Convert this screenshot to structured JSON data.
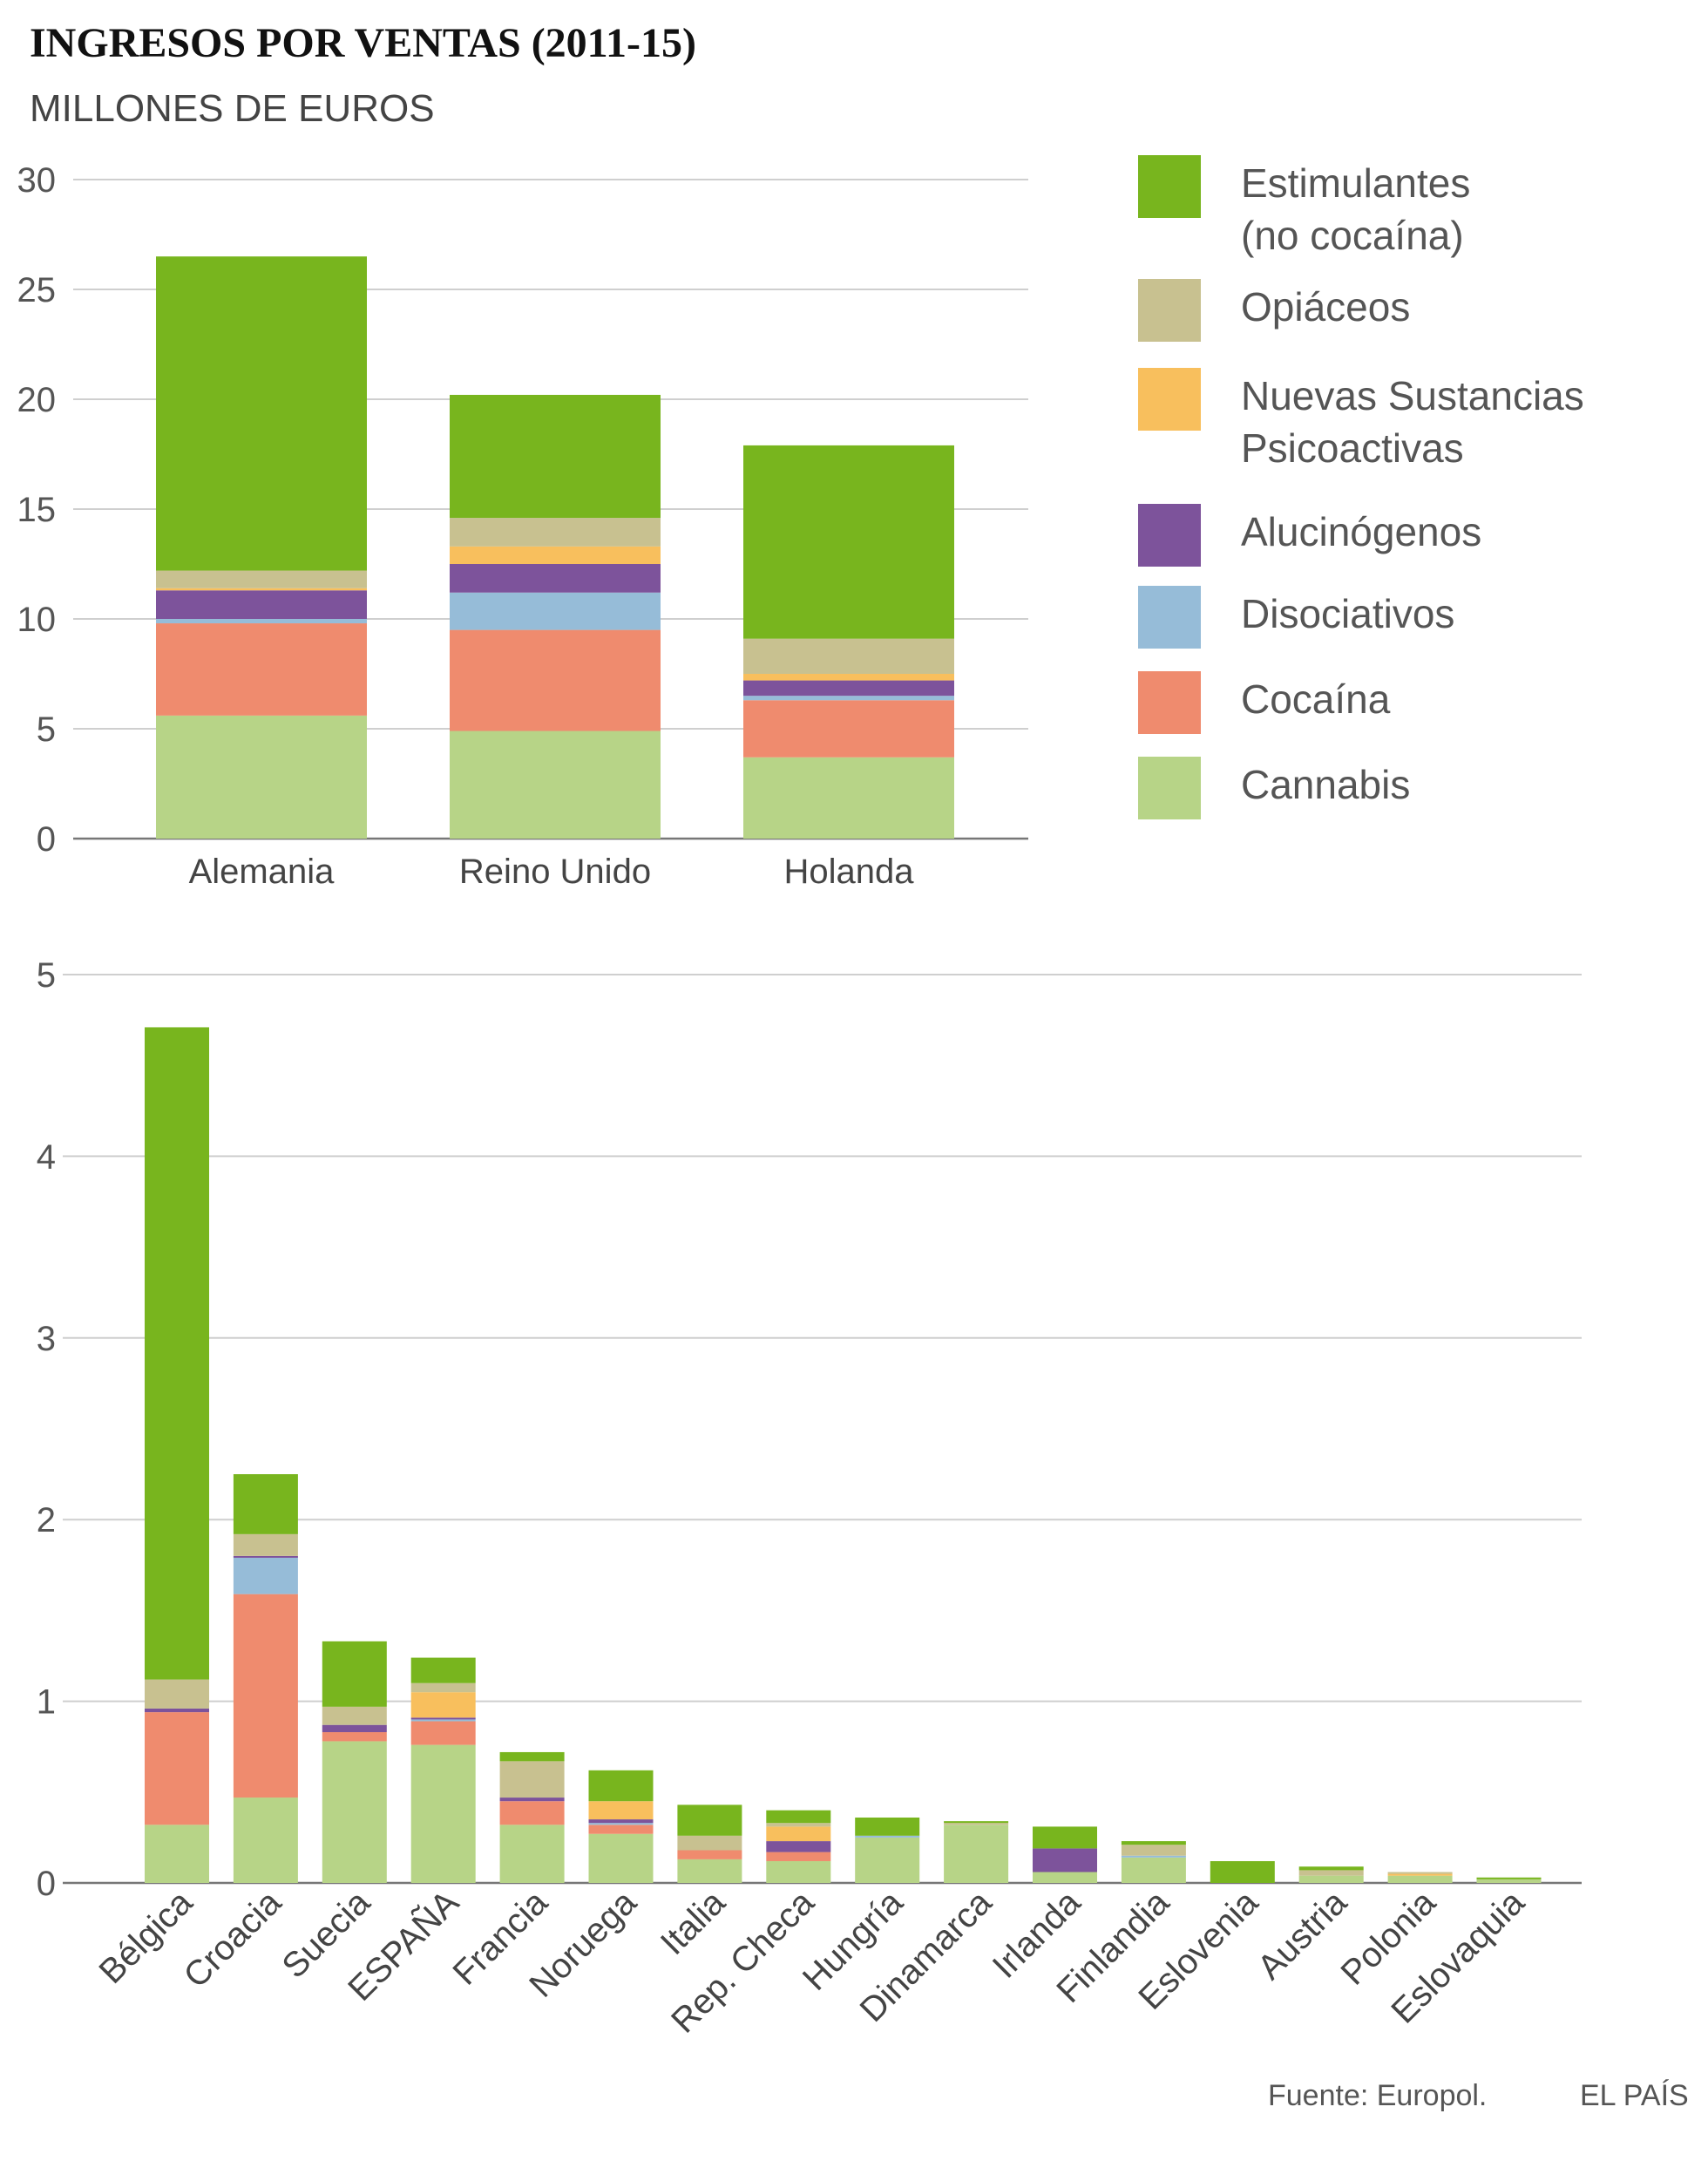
{
  "title": "INGRESOS POR VENTAS (2011-15)",
  "subtitle": "MILLONES DE EUROS",
  "source": "Fuente: Europol.",
  "brand": "EL PAÍS",
  "legend": [
    {
      "name": "Estimulantes (no cocaína)",
      "lines": [
        "Estimulantes",
        "(no cocaína)"
      ],
      "color": "#78b51e"
    },
    {
      "name": "Opiáceos",
      "lines": [
        "Opiáceos"
      ],
      "color": "#c8c190"
    },
    {
      "name": "Nuevas Sustancias Psicoactivas",
      "lines": [
        "Nuevas Sustancias",
        "Psicoactivas"
      ],
      "color": "#f8bf5d"
    },
    {
      "name": "Alucinógenos",
      "lines": [
        "Alucinógenos"
      ],
      "color": "#7d539b"
    },
    {
      "name": "Disociativos",
      "lines": [
        "Disociativos"
      ],
      "color": "#96bcd8"
    },
    {
      "name": "Cocaína",
      "lines": [
        "Cocaína"
      ],
      "color": "#ef8b6e"
    },
    {
      "name": "Cannabis",
      "lines": [
        "Cannabis"
      ],
      "color": "#b7d487"
    }
  ],
  "chart_data": [
    {
      "type": "bar",
      "stacked": true,
      "ylim": [
        0,
        30
      ],
      "yticks": [
        0,
        5,
        10,
        15,
        20,
        25,
        30
      ],
      "categories": [
        "Alemania",
        "Reino Unido",
        "Holanda"
      ],
      "series": [
        {
          "name": "Cannabis",
          "values": [
            5.6,
            4.9,
            3.7
          ]
        },
        {
          "name": "Cocaína",
          "values": [
            4.2,
            4.6,
            2.6
          ]
        },
        {
          "name": "Disociativos",
          "values": [
            0.2,
            1.7,
            0.2
          ]
        },
        {
          "name": "Alucinógenos",
          "values": [
            1.3,
            1.3,
            0.7
          ]
        },
        {
          "name": "Nuevas Sustancias Psicoactivas",
          "values": [
            0.1,
            0.8,
            0.3
          ]
        },
        {
          "name": "Opiáceos",
          "values": [
            0.8,
            1.3,
            1.6
          ]
        },
        {
          "name": "Estimulantes (no cocaína)",
          "values": [
            14.3,
            5.6,
            8.8
          ]
        }
      ]
    },
    {
      "type": "bar",
      "stacked": true,
      "ylim": [
        0,
        5
      ],
      "yticks": [
        0,
        1,
        2,
        3,
        4,
        5
      ],
      "categories": [
        "Bélgica",
        "Croacia",
        "Suecia",
        "ESPAÑA",
        "Francia",
        "Noruega",
        "Italia",
        "Rep. Checa",
        "Hungría",
        "Dinamarca",
        "Irlanda",
        "Finlandia",
        "Eslovenia",
        "Austria",
        "Polonia",
        "Eslovaquia"
      ],
      "series": [
        {
          "name": "Cannabis",
          "values": [
            0.32,
            0.47,
            0.78,
            0.76,
            0.32,
            0.27,
            0.13,
            0.12,
            0.25,
            0.32,
            0.06,
            0.14,
            0.0,
            0.04,
            0.04,
            0.02
          ]
        },
        {
          "name": "Cocaína",
          "values": [
            0.62,
            1.12,
            0.05,
            0.13,
            0.13,
            0.05,
            0.05,
            0.05,
            0.0,
            0.0,
            0.0,
            0.0,
            0.0,
            0.0,
            0.0,
            0.0
          ]
        },
        {
          "name": "Disociativos",
          "values": [
            0.0,
            0.2,
            0.0,
            0.01,
            0.0,
            0.01,
            0.0,
            0.0,
            0.01,
            0.0,
            0.0,
            0.01,
            0.0,
            0.0,
            0.0,
            0.0
          ]
        },
        {
          "name": "Alucinógenos",
          "values": [
            0.02,
            0.01,
            0.04,
            0.01,
            0.02,
            0.02,
            0.0,
            0.06,
            0.0,
            0.0,
            0.13,
            0.0,
            0.0,
            0.0,
            0.0,
            0.0
          ]
        },
        {
          "name": "Nuevas Sustancias Psicoactivas",
          "values": [
            0.0,
            0.0,
            0.0,
            0.14,
            0.0,
            0.1,
            0.0,
            0.08,
            0.0,
            0.0,
            0.0,
            0.0,
            0.0,
            0.0,
            0.01,
            0.0
          ]
        },
        {
          "name": "Opiáceos",
          "values": [
            0.16,
            0.12,
            0.1,
            0.05,
            0.2,
            0.0,
            0.08,
            0.02,
            0.0,
            0.01,
            0.0,
            0.06,
            0.0,
            0.03,
            0.01,
            0.0
          ]
        },
        {
          "name": "Estimulantes (no cocaína)",
          "values": [
            3.59,
            0.33,
            0.36,
            0.14,
            0.05,
            0.17,
            0.17,
            0.07,
            0.1,
            0.01,
            0.12,
            0.02,
            0.12,
            0.02,
            0.0,
            0.01
          ]
        }
      ]
    }
  ]
}
